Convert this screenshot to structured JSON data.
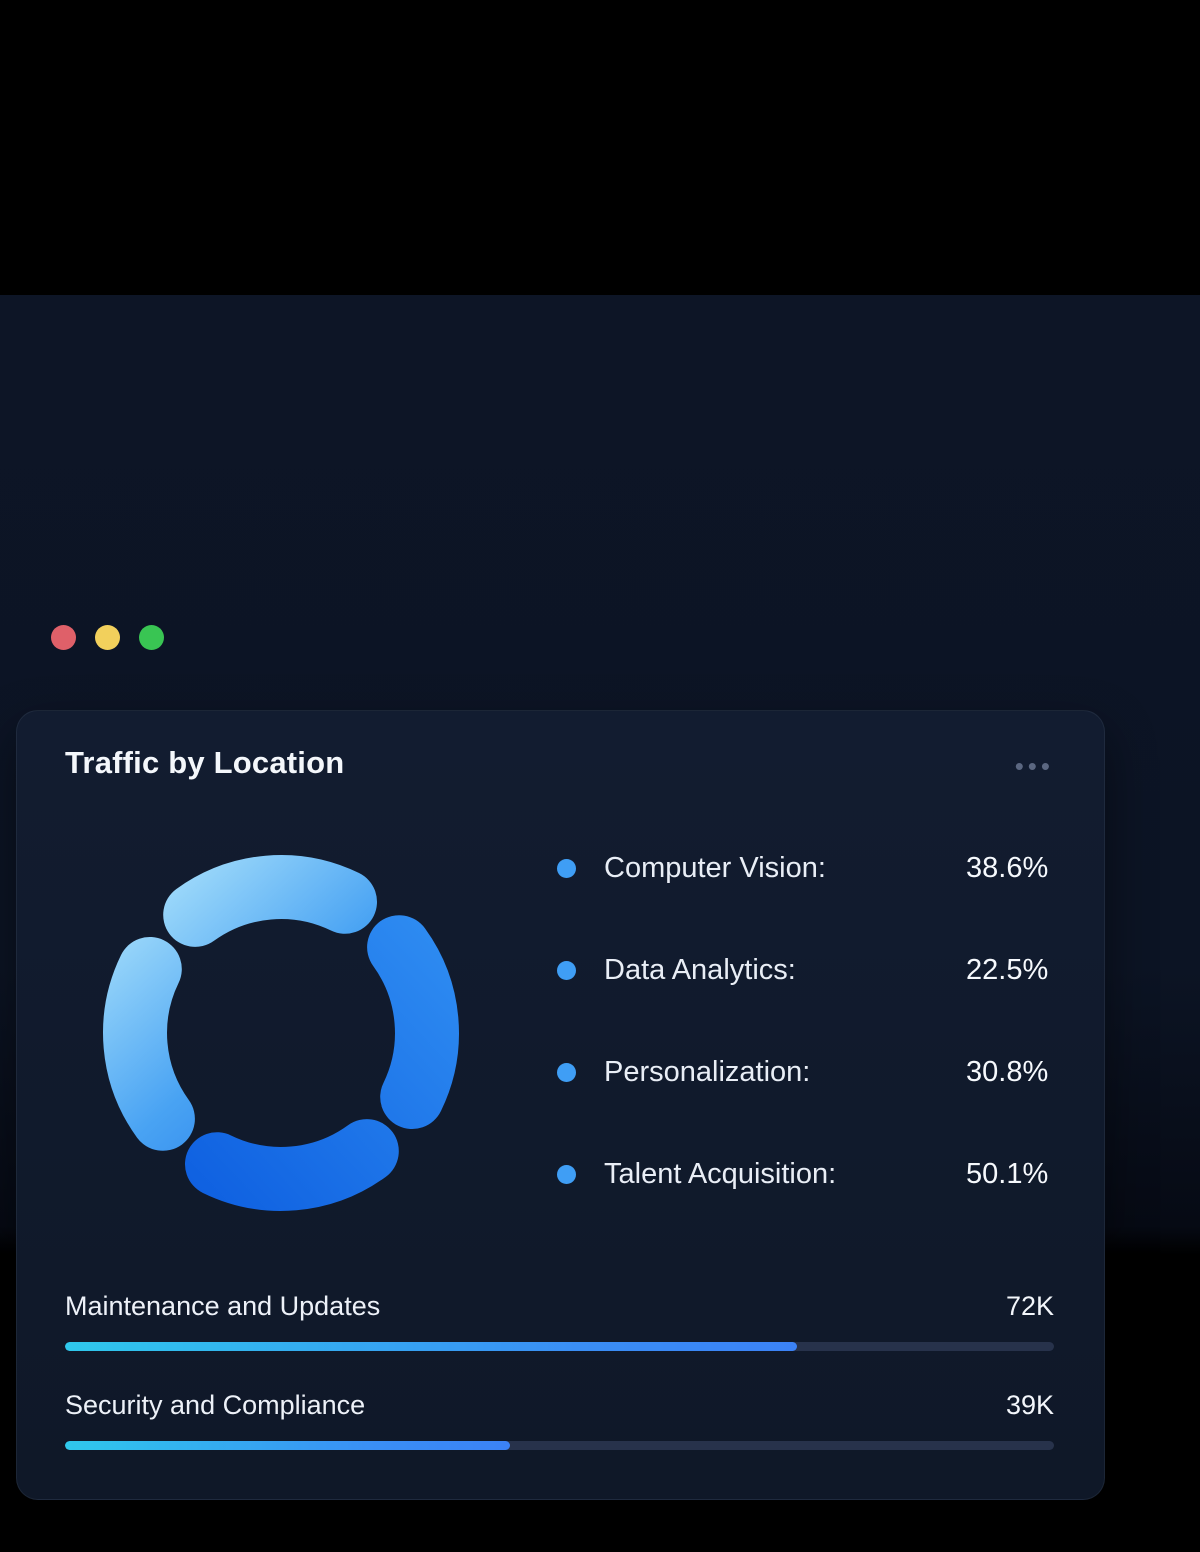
{
  "window": {
    "traffic_lights": [
      {
        "name": "close",
        "color": "#df6069"
      },
      {
        "name": "minimize",
        "color": "#f2d05c"
      },
      {
        "name": "zoom",
        "color": "#39c553"
      }
    ]
  },
  "card": {
    "title": "Traffic by Location",
    "menu_icon": "•••"
  },
  "chart_data": {
    "type": "pie",
    "variant": "donut",
    "title": "Traffic by Location",
    "legend_position": "right",
    "segments": [
      {
        "label": "Computer Vision",
        "value_pct": 38.6
      },
      {
        "label": "Data Analytics",
        "value_pct": 22.5
      },
      {
        "label": "Personalization",
        "value_pct": 30.8
      },
      {
        "label": "Talent Acquisition",
        "value_pct": 50.1
      }
    ],
    "legend": [
      {
        "label": "Computer Vision:",
        "value": "38.6%"
      },
      {
        "label": "Data Analytics:",
        "value": "22.5%"
      },
      {
        "label": "Personalization:",
        "value": "30.8%"
      },
      {
        "label": "Talent Acquisition:",
        "value": "50.1%"
      }
    ],
    "bars": [
      {
        "label": "Maintenance and Updates",
        "value": "72K",
        "fill_percent": "74%"
      },
      {
        "label": "Security and Compliance",
        "value": "39K",
        "fill_percent": "45%"
      }
    ],
    "colors": {
      "donut_gradient_light": "#9fdcfa",
      "donut_gradient_dark": "#0f66e6",
      "legend_dot": "#3f9ef5",
      "bar_gradient_start": "#2fc8ec",
      "bar_gradient_end": "#3b82f6",
      "bar_track": "#27324b"
    }
  }
}
